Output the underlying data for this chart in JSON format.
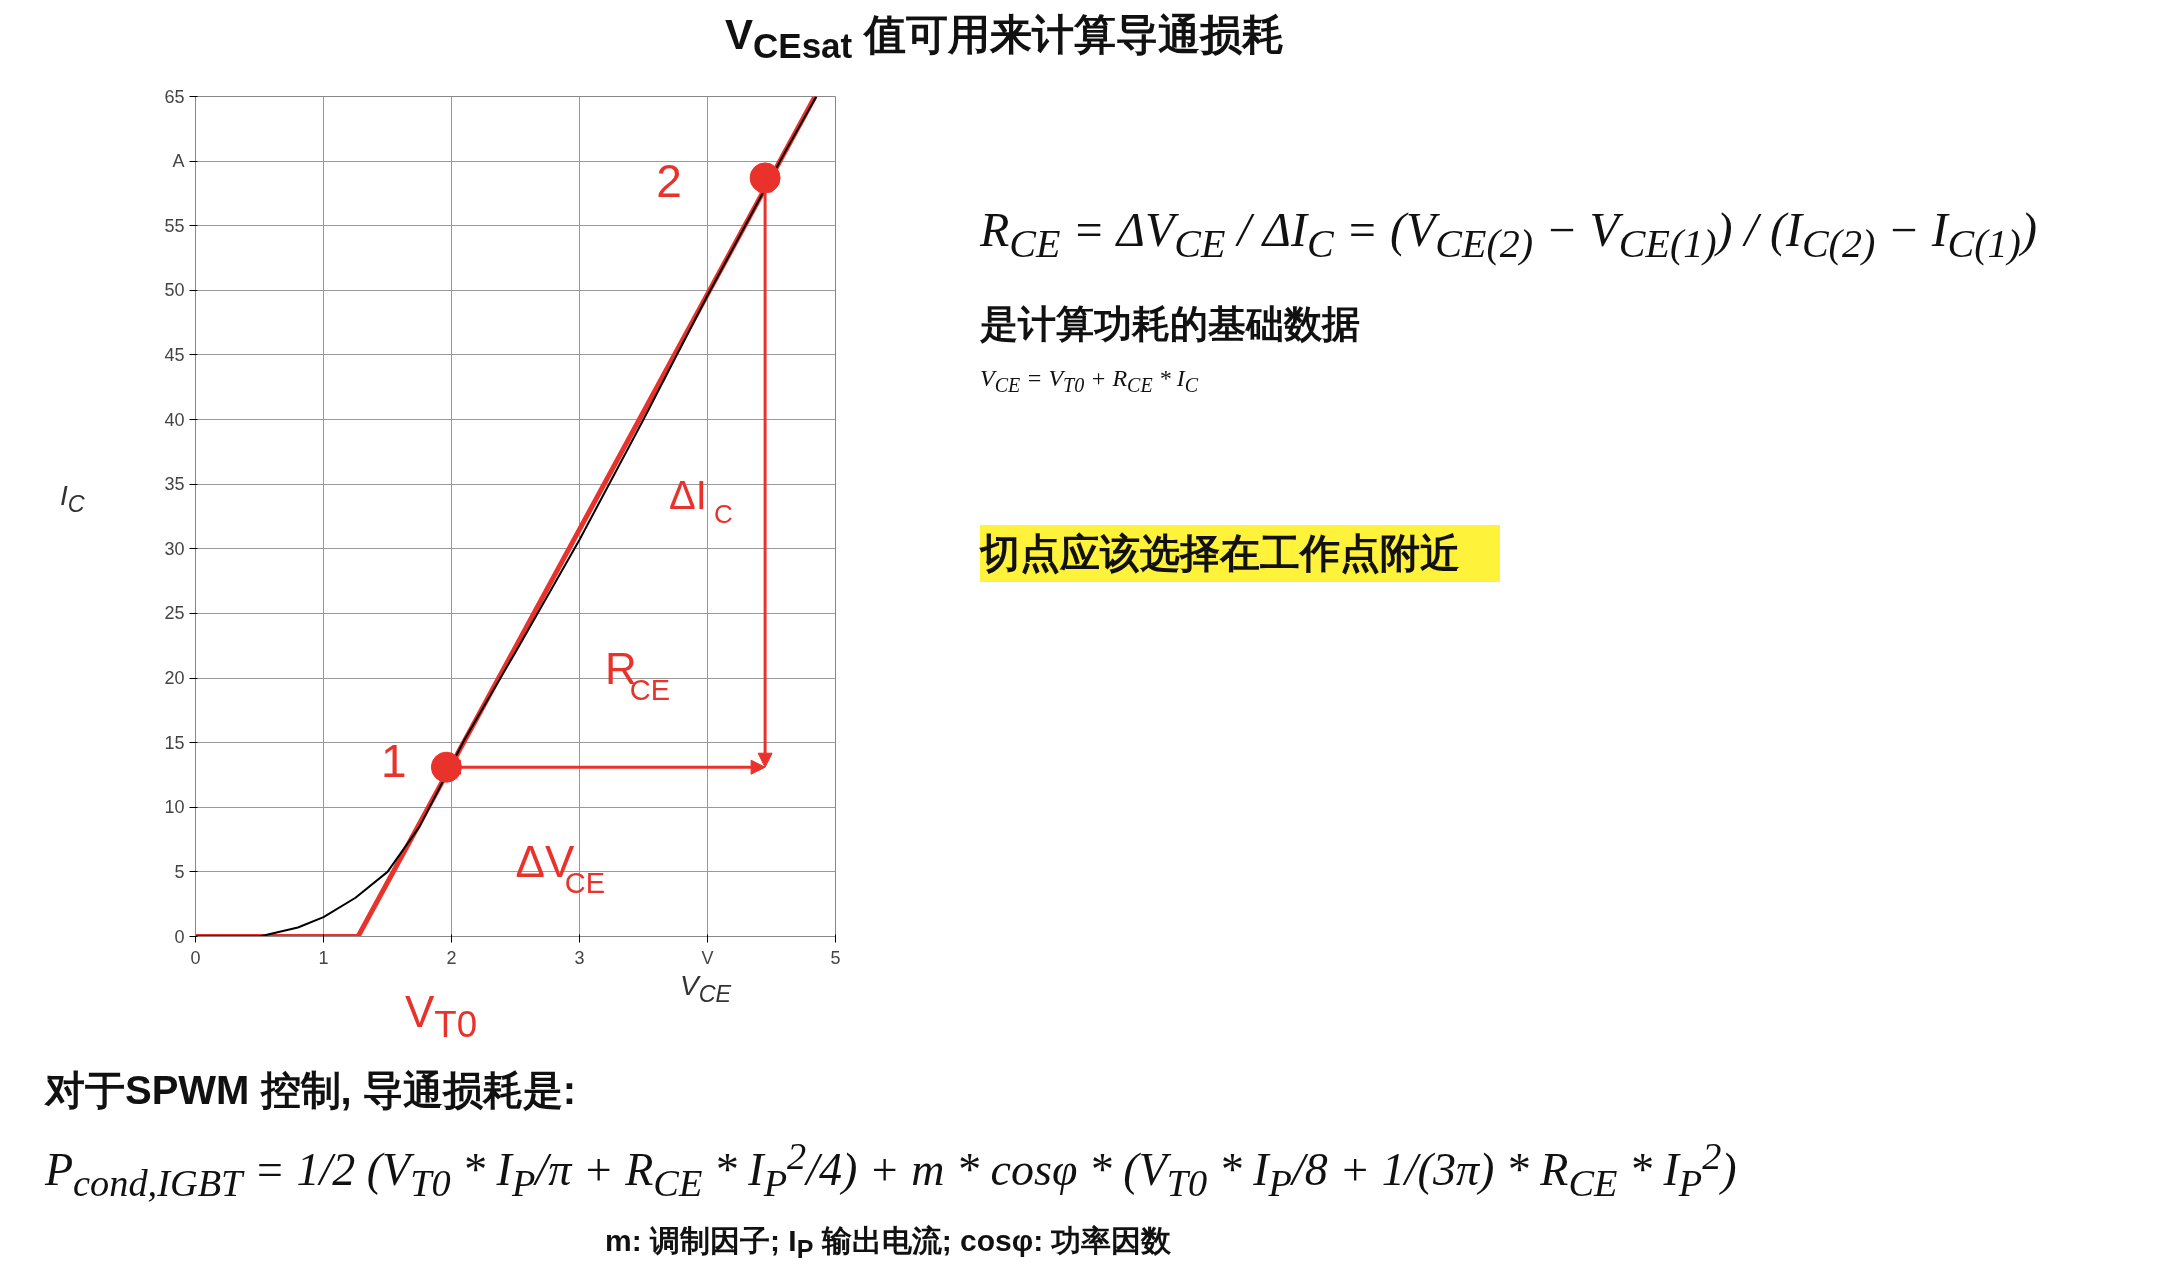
{
  "chart_data": {
    "type": "line",
    "title": "V$_{CEsat}$ 值可用来计算导通损耗",
    "xlabel": "V$_{CE}$",
    "ylabel": "I$_{C}$",
    "xlim": [
      0,
      5
    ],
    "ylim": [
      0,
      65
    ],
    "xticks": [
      0,
      1,
      2,
      3,
      {
        "value": 4,
        "label": "V"
      },
      5
    ],
    "yticks": [
      0,
      5,
      10,
      15,
      20,
      25,
      30,
      35,
      40,
      45,
      50,
      55,
      {
        "value": 60,
        "label": "A"
      },
      65
    ],
    "grid": true,
    "series": [
      {
        "color": "#e8322b",
        "x": [
          0,
          1.27,
          4.84
        ],
        "values": [
          0,
          0,
          65
        ]
      },
      {
        "color": "#000000",
        "x": [
          0,
          0.5,
          0.8,
          1,
          1.25,
          1.5,
          1.75,
          2.1,
          2.5,
          3,
          3.5,
          4,
          4.6,
          4.85
        ],
        "values": [
          0,
          0,
          0.7,
          1.5,
          3,
          5,
          8.5,
          15.2,
          22,
          30.7,
          40,
          49.6,
          60.6,
          65
        ]
      },
      {
        "type": "scatter",
        "color": "#e8322b",
        "x": [
          1.96,
          4.45
        ],
        "values": [
          13.1,
          58.7
        ]
      }
    ],
    "annotations": [
      "1",
      "2",
      "ΔI$_{C}$",
      "R$_{CE}$",
      "ΔV$_{CE}$",
      "V$_{T0}$",
      "R$_{CE}$ = ΔV$_{CE}$ / ΔI$_{C}$ = (V$_{CE(2)}$ − V$_{CE(1)}$) / (I$_{C(2)}$ − I$_{C(1)}$)",
      "是计算功耗的基础数据",
      "V$_{CE}$ = V$_{T0}$ + R$_{CE}$ * I$_{C}$",
      "切点应该选择在工作点附近",
      "对于SPWM 控制, 导通损耗是:",
      "P$_{cond,IGBT}$ = 1/2 (V$_{T0}$ * I$_{P}$/π + R$_{CE}$ * I$_{P}$$^{2}$/4) + m * cosφ * (V$_{T0}$ * I$_{P}$/8 + 1/(3π) * R$_{CE}$ * I$_{P}$$^{2}$)",
      "m: 调制因子; I$_{P}$ 输出电流; cosφ: 功率因数"
    ]
  }
}
